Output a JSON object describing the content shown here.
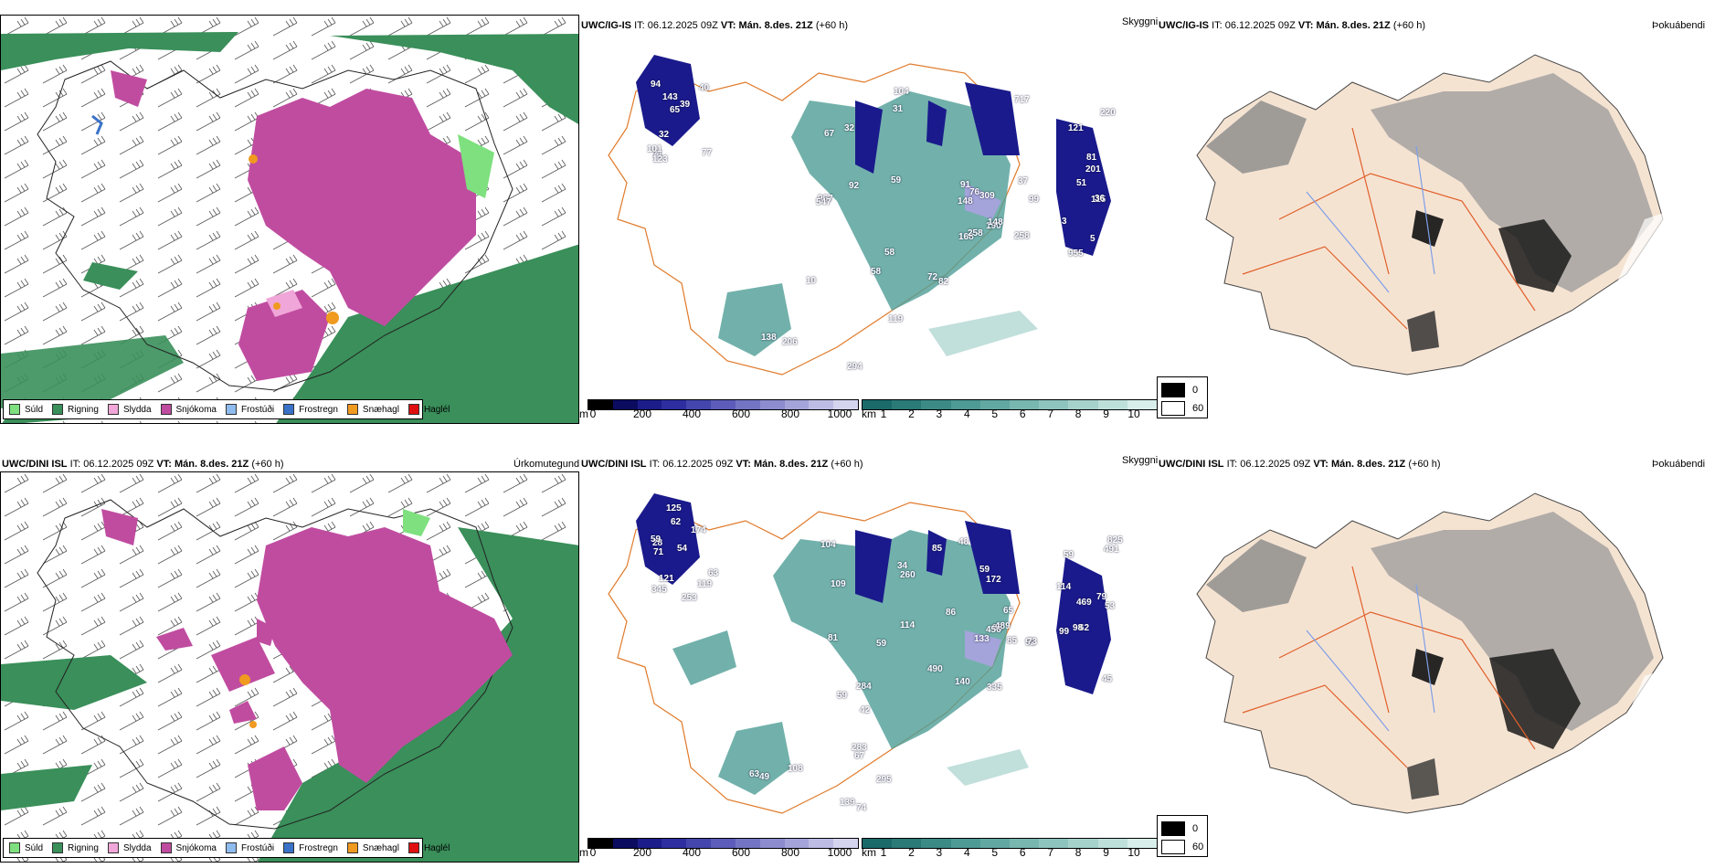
{
  "rows": [
    {
      "model": "UWC/IG-IS",
      "it_label": "IT:",
      "it_value": "06.12.2025 09Z",
      "vt_label": "VT:",
      "vt_value": "Mán. 8.des. 21Z",
      "lead": "(+60 h)",
      "labels": [
        "77",
        "67",
        "37",
        "51",
        "58",
        "71",
        "31",
        "76",
        "3",
        "10",
        "101",
        "92",
        "91",
        "81",
        "119",
        "94",
        "104",
        "99",
        "115",
        "72",
        "65",
        "59",
        "148",
        "121",
        "58",
        "32",
        "309",
        "258",
        "36",
        "294",
        "143",
        "32",
        "190",
        "955",
        "82",
        "39",
        "967",
        "168",
        "201",
        "138",
        "40",
        "717",
        "148",
        "5",
        "206",
        "123",
        "547",
        "258",
        "220"
      ]
    },
    {
      "model": "UWC/DINI ISL",
      "it_label": "IT:",
      "it_value": "06.12.2025 09Z",
      "vt_label": "VT:",
      "vt_value": "Mán. 8.des. 21Z",
      "lead": "(+60 h)",
      "labels": [
        "125",
        "48",
        "52",
        "62",
        "67",
        "71",
        "104",
        "95",
        "99",
        "42",
        "54",
        "81",
        "86",
        "98",
        "74",
        "253",
        "114",
        "65",
        "79",
        "108",
        "28",
        "109",
        "73",
        "53",
        "63",
        "59",
        "260",
        "85",
        "45",
        "49",
        "119",
        "85",
        "490",
        "469",
        "295",
        "63",
        "59",
        "140",
        "825",
        "59",
        "345",
        "59",
        "335",
        "59",
        "139",
        "174",
        "456",
        "489",
        "114",
        "283",
        "62",
        "172",
        "133",
        "491",
        "284",
        "121",
        "34"
      ]
    }
  ],
  "panels": {
    "precip_type": "Úrkomutegund",
    "visibility": "Skyggni",
    "fog": "Þokuábendi"
  },
  "precip_legend": [
    {
      "label": "Súld",
      "color": "#7ee07e"
    },
    {
      "label": "Rigning",
      "color": "#3a8f5a"
    },
    {
      "label": "Slydda",
      "color": "#f0a6d8"
    },
    {
      "label": "Snjókoma",
      "color": "#c04ca0"
    },
    {
      "label": "Frostúði",
      "color": "#8fbcef"
    },
    {
      "label": "Frostregn",
      "color": "#3a72c8"
    },
    {
      "label": "Snæhagl",
      "color": "#f09a20"
    },
    {
      "label": "Haglél",
      "color": "#e01010"
    }
  ],
  "vis_scale_m": {
    "unit": "m",
    "ticks": [
      "0",
      "200",
      "400",
      "600",
      "800",
      "1000"
    ],
    "colors": [
      "#000000",
      "#0b0b60",
      "#1c1c8a",
      "#2e2ea0",
      "#4545ae",
      "#5c5cba",
      "#7474c4",
      "#8c8ccf",
      "#a4a4da",
      "#bcbce4",
      "#d4d4ee"
    ]
  },
  "vis_scale_km": {
    "unit": "km",
    "ticks": [
      "1",
      "2",
      "3",
      "4",
      "5",
      "6",
      "7",
      "8",
      "9",
      "10"
    ],
    "colors": [
      "#1a6a6a",
      "#2a7a78",
      "#3c8a86",
      "#4e9a94",
      "#62a8a2",
      "#78b6b0",
      "#8ec4be",
      "#a6d2cc",
      "#bee0da",
      "#d8eeea"
    ]
  },
  "fog_scale": {
    "high": "0",
    "low": "60",
    "high_color": "#000000",
    "low_color": "#ffffff"
  },
  "colors": {
    "rain": "#3a8f5a",
    "snow": "#c04ca0",
    "sleet": "#f0a6d8",
    "drizzle": "#7ee07e",
    "land": "#f5e3d2",
    "road": "#e0602a",
    "river": "#7d9fe8",
    "vis_teal": "#4f9e96",
    "vis_blue": "#1a1a8c"
  }
}
